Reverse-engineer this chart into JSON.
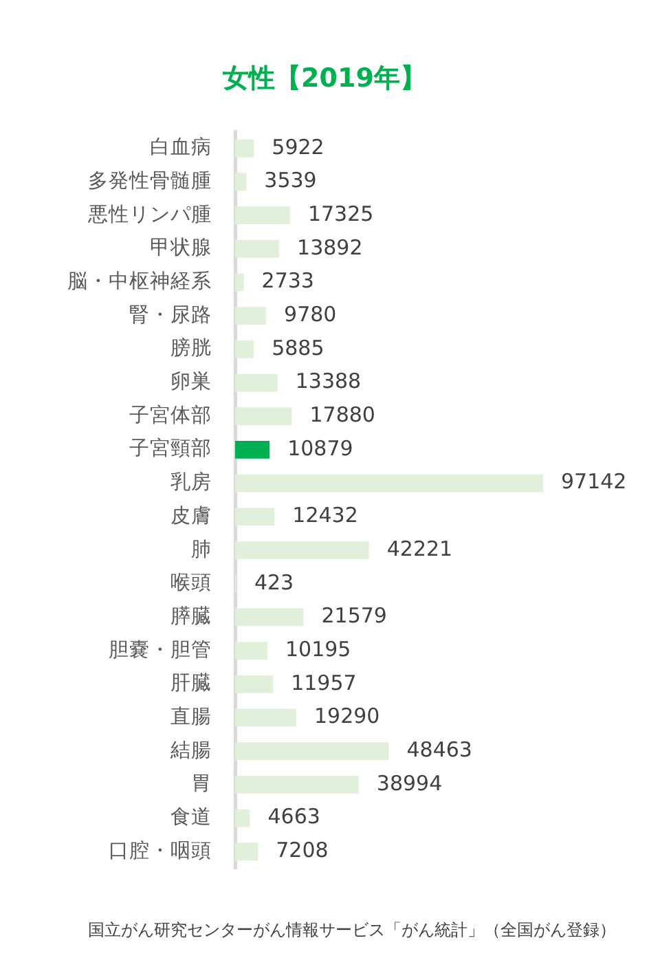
{
  "chart_data": {
    "type": "bar",
    "orientation": "horizontal",
    "title": "女性【2019年】",
    "categories": [
      "白血病",
      "多発性骨髄腫",
      "悪性リンパ腫",
      "甲状腺",
      "脳・中枢神経系",
      "腎・尿路",
      "膀胱",
      "卵巣",
      "子宮体部",
      "子宮頸部",
      "乳房",
      "皮膚",
      "肺",
      "喉頭",
      "膵臓",
      "胆嚢・胆管",
      "肝臓",
      "直腸",
      "結腸",
      "胃",
      "食道",
      "口腔・咽頭"
    ],
    "values": [
      5922,
      3539,
      17325,
      13892,
      2733,
      9780,
      5885,
      13388,
      17880,
      10879,
      97142,
      12432,
      42221,
      423,
      21579,
      10195,
      11957,
      19290,
      48463,
      38994,
      4663,
      7208
    ],
    "colors": [
      "#e2efda",
      "#e2efda",
      "#e2efda",
      "#e2efda",
      "#e2efda",
      "#e2efda",
      "#e2efda",
      "#e2efda",
      "#e2efda",
      "#00b050",
      "#e2efda",
      "#e2efda",
      "#e2efda",
      "#e2efda",
      "#e2efda",
      "#e2efda",
      "#e2efda",
      "#e2efda",
      "#e2efda",
      "#e2efda",
      "#e2efda",
      "#e2efda"
    ],
    "tick_labels": "y",
    "data_labels": true,
    "annotations": [
      "国立がん研究センターがん情報サービス「がん統計」（全国がん登録）"
    ]
  }
}
